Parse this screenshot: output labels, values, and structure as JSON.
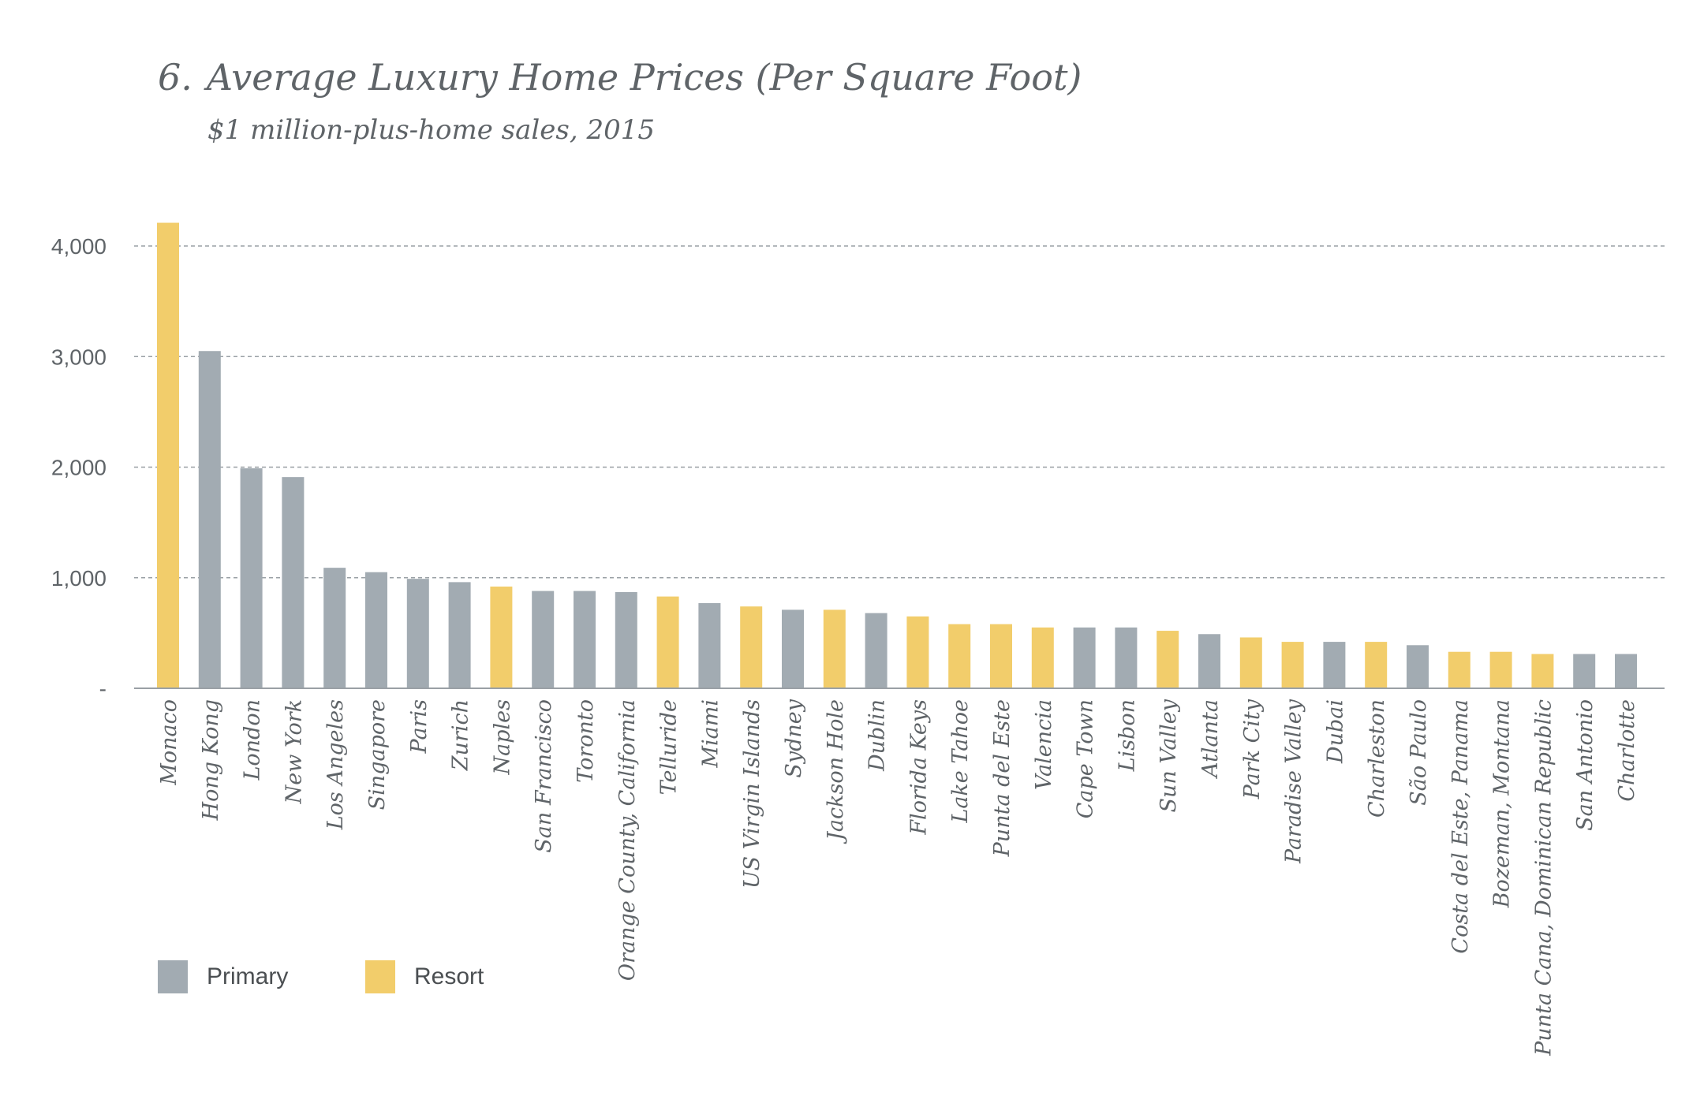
{
  "title": {
    "number": "6.",
    "text": "Average Luxury Home Prices (Per Square Foot)",
    "subtitle": "$1 million-plus-home sales, 2015"
  },
  "legend": {
    "primary_label": "Primary",
    "resort_label": "Resort"
  },
  "colors": {
    "primary": "#a2abb2",
    "resort": "#f2cd6b",
    "grid": "#9aa0a5",
    "axis": "#9aa0a5",
    "text": "#5f6468"
  },
  "chart_data": {
    "type": "bar",
    "title": "Average Luxury Home Prices (Per Square Foot)",
    "subtitle": "$1 million-plus-home sales, 2015",
    "xlabel": "",
    "ylabel": "",
    "ylim": [
      0,
      4000
    ],
    "yticks": [
      {
        "value": 0,
        "label": "-"
      },
      {
        "value": 1000,
        "label": "1,000"
      },
      {
        "value": 2000,
        "label": "2,000"
      },
      {
        "value": 3000,
        "label": "3,000"
      },
      {
        "value": 4000,
        "label": "4,000"
      }
    ],
    "grid": "horizontal dashed",
    "legend_position": "bottom-left",
    "series": [
      {
        "name": "Primary",
        "color": "#a2abb2"
      },
      {
        "name": "Resort",
        "color": "#f2cd6b"
      }
    ],
    "categories": [
      "Monaco",
      "Hong Kong",
      "London",
      "New York",
      "Los Angeles",
      "Singapore",
      "Paris",
      "Zurich",
      "Naples",
      "San Francisco",
      "Toronto",
      "Orange County, California",
      "Telluride",
      "Miami",
      "US Virgin Islands",
      "Sydney",
      "Jackson Hole",
      "Dublin",
      "Florida Keys",
      "Lake Tahoe",
      "Punta del Este",
      "Valencia",
      "Cape Town",
      "Lisbon",
      "Sun Valley",
      "Atlanta",
      "Park City",
      "Paradise Valley",
      "Dubai",
      "Charleston",
      "São Paulo",
      "Costa del Este, Panama",
      "Bozeman, Montana",
      "Punta Cana, Dominican Republic",
      "San Antonio",
      "Charlotte"
    ],
    "values": [
      4210,
      3050,
      1990,
      1910,
      1090,
      1050,
      990,
      960,
      920,
      880,
      880,
      870,
      830,
      770,
      740,
      710,
      710,
      680,
      650,
      580,
      580,
      550,
      550,
      550,
      520,
      490,
      460,
      420,
      420,
      420,
      390,
      330,
      330,
      310,
      310,
      310
    ],
    "groups": [
      "Resort",
      "Primary",
      "Primary",
      "Primary",
      "Primary",
      "Primary",
      "Primary",
      "Primary",
      "Resort",
      "Primary",
      "Primary",
      "Primary",
      "Resort",
      "Primary",
      "Resort",
      "Primary",
      "Resort",
      "Primary",
      "Resort",
      "Resort",
      "Resort",
      "Resort",
      "Primary",
      "Primary",
      "Resort",
      "Primary",
      "Resort",
      "Resort",
      "Primary",
      "Resort",
      "Primary",
      "Resort",
      "Resort",
      "Resort",
      "Primary",
      "Primary"
    ]
  }
}
